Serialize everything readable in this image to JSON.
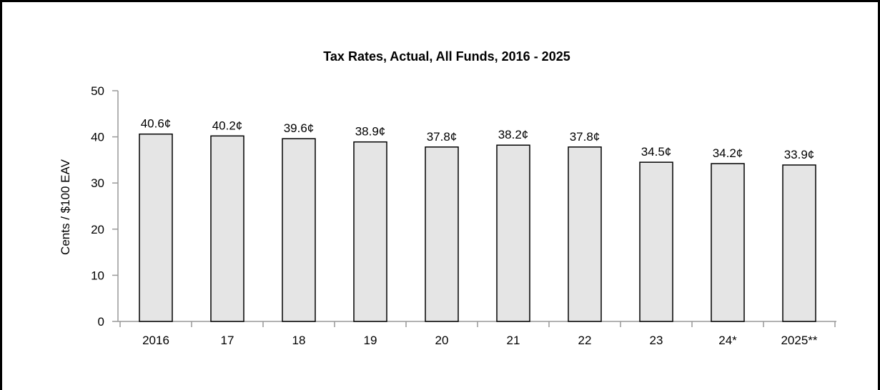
{
  "chart_data": {
    "type": "bar",
    "title": "Tax Rates, Actual, All Funds, 2016 - 2025",
    "xlabel": "",
    "ylabel": "Cents / $100 EAV",
    "categories": [
      "2016",
      "17",
      "18",
      "19",
      "20",
      "21",
      "22",
      "23",
      "24*",
      "2025**"
    ],
    "values": [
      40.6,
      40.2,
      39.6,
      38.9,
      37.8,
      38.2,
      37.8,
      34.5,
      34.2,
      33.9
    ],
    "data_labels": [
      "40.6¢",
      "40.2¢",
      "39.6¢",
      "38.9¢",
      "37.8¢",
      "38.2¢",
      "37.8¢",
      "34.5¢",
      "34.2¢",
      "33.9¢"
    ],
    "ylim": [
      0,
      50
    ],
    "yticks": [
      0,
      10,
      20,
      30,
      40,
      50
    ],
    "grid": false,
    "legend": "none",
    "colors": {
      "bar_fill": "#e5e5e5",
      "bar_stroke": "#000000",
      "axis": "#999999",
      "frame": "#000000"
    }
  }
}
